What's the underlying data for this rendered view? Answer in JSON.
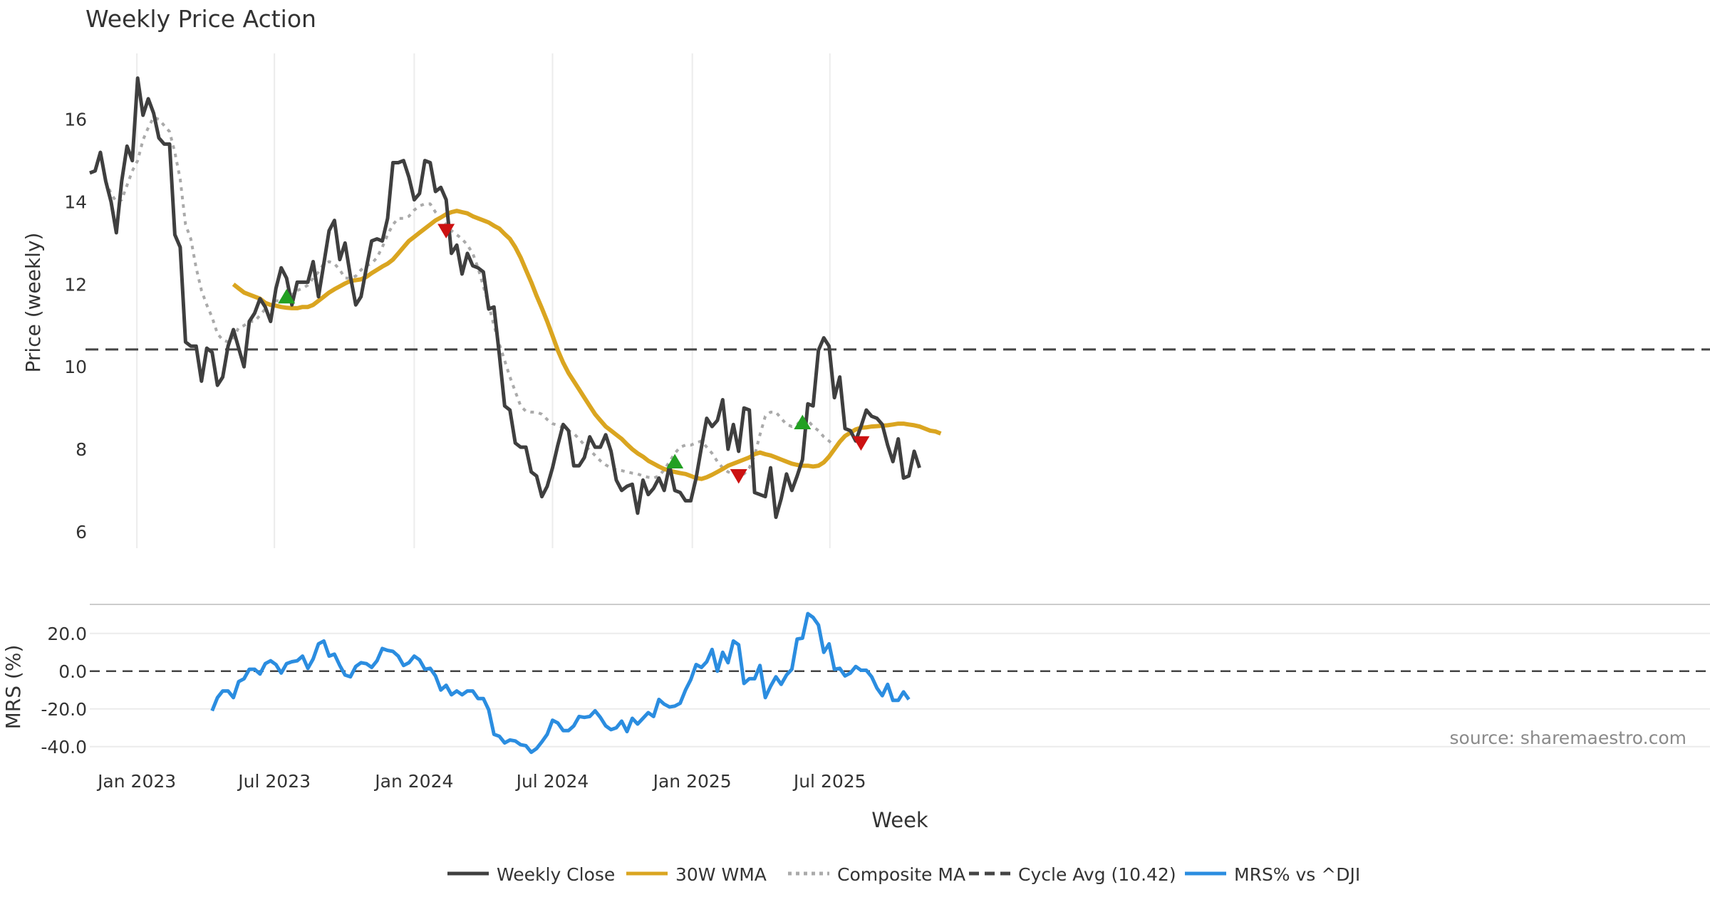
{
  "chart_data": [
    {
      "type": "line",
      "title": "Weekly Price Action",
      "ylabel": "Price (weekly)",
      "ylim": [
        5.6,
        17.6
      ],
      "yticks": [
        6,
        8,
        10,
        12,
        14,
        16
      ],
      "grid": "x-only",
      "x_tick_labels": [
        "Jan 2023",
        "Jul 2023",
        "Jan 2024",
        "Jul 2024",
        "Jan 2025",
        "Jul 2025"
      ],
      "x_start": "2022-10-31",
      "x_step_days": 7,
      "cycle_avg": 10.42,
      "series": [
        {
          "name": "Weekly Close",
          "color": "#3f3f3f",
          "style": "solid",
          "values": [
            14.7,
            14.75,
            15.2,
            14.5,
            14.0,
            13.25,
            14.5,
            15.35,
            15.0,
            17.0,
            16.1,
            16.5,
            16.15,
            15.55,
            15.4,
            15.4,
            13.2,
            12.9,
            10.6,
            10.5,
            10.5,
            9.65,
            10.45,
            10.35,
            9.55,
            9.75,
            10.5,
            10.9,
            10.45,
            10.0,
            11.1,
            11.3,
            11.65,
            11.45,
            11.1,
            11.9,
            12.4,
            12.15,
            11.5,
            12.05,
            12.05,
            12.05,
            12.55,
            11.7,
            12.5,
            13.3,
            13.55,
            12.6,
            13.0,
            12.2,
            11.5,
            11.7,
            12.4,
            13.05,
            13.1,
            13.05,
            13.6,
            14.95,
            14.95,
            15.0,
            14.6,
            14.05,
            14.2,
            15.0,
            14.95,
            14.25,
            14.35,
            14.05,
            12.75,
            12.95,
            12.25,
            12.75,
            12.45,
            12.4,
            12.3,
            11.4,
            11.45,
            10.3,
            9.05,
            8.95,
            8.15,
            8.05,
            8.05,
            7.45,
            7.35,
            6.85,
            7.1,
            7.55,
            8.1,
            8.6,
            8.45,
            7.6,
            7.6,
            7.8,
            8.3,
            8.05,
            8.05,
            8.35,
            7.95,
            7.25,
            7.0,
            7.1,
            7.15,
            6.45,
            7.25,
            6.9,
            7.05,
            7.3,
            7.0,
            7.6,
            7.0,
            6.95,
            6.75,
            6.75,
            7.3,
            8.05,
            8.75,
            8.55,
            8.7,
            9.2,
            8.0,
            8.6,
            7.95,
            9.0,
            8.95,
            6.95,
            6.9,
            6.85,
            7.55,
            6.35,
            6.8,
            7.4,
            7.0,
            7.35,
            7.75,
            9.1,
            9.05,
            10.4,
            10.7,
            10.5,
            9.25,
            9.75,
            8.5,
            8.45,
            8.2,
            8.55,
            8.95,
            8.8,
            8.75,
            8.6,
            8.1,
            7.7,
            8.25,
            7.3,
            7.35,
            7.95,
            7.55
          ]
        },
        {
          "name": "30W WMA",
          "color": "#daa520",
          "style": "solid",
          "start_index": 27,
          "values": [
            12.0,
            11.9,
            11.8,
            11.75,
            11.7,
            11.65,
            11.55,
            11.5,
            11.48,
            11.45,
            11.43,
            11.42,
            11.42,
            11.45,
            11.45,
            11.5,
            11.6,
            11.7,
            11.8,
            11.88,
            11.95,
            12.02,
            12.08,
            12.1,
            12.12,
            12.18,
            12.27,
            12.35,
            12.43,
            12.5,
            12.6,
            12.75,
            12.9,
            13.05,
            13.15,
            13.25,
            13.35,
            13.45,
            13.55,
            13.62,
            13.7,
            13.75,
            13.78,
            13.75,
            13.72,
            13.65,
            13.6,
            13.55,
            13.5,
            13.42,
            13.35,
            13.22,
            13.1,
            12.9,
            12.65,
            12.35,
            12.05,
            11.72,
            11.42,
            11.1,
            10.75,
            10.4,
            10.1,
            9.85,
            9.65,
            9.45,
            9.25,
            9.05,
            8.85,
            8.7,
            8.55,
            8.45,
            8.35,
            8.25,
            8.12,
            8.0,
            7.9,
            7.82,
            7.72,
            7.65,
            7.58,
            7.52,
            7.48,
            7.45,
            7.42,
            7.4,
            7.35,
            7.3,
            7.28,
            7.32,
            7.38,
            7.45,
            7.52,
            7.6,
            7.65,
            7.7,
            7.75,
            7.8,
            7.88,
            7.92,
            7.88,
            7.85,
            7.8,
            7.75,
            7.7,
            7.65,
            7.62,
            7.6,
            7.6,
            7.58,
            7.6,
            7.68,
            7.82,
            8.0,
            8.18,
            8.32,
            8.4,
            8.48,
            8.52,
            8.53,
            8.55,
            8.56,
            8.57,
            8.58,
            8.6,
            8.62,
            8.62,
            8.6,
            8.58,
            8.55,
            8.5,
            8.45,
            8.43,
            8.38
          ]
        },
        {
          "name": "Composite MA",
          "color": "#aaaaaa",
          "style": "dotted",
          "start_index": 3,
          "values": [
            14.5,
            14.2,
            14.0,
            14.05,
            14.4,
            14.75,
            15.0,
            15.5,
            15.8,
            16.05,
            16.0,
            15.85,
            15.7,
            15.2,
            14.55,
            13.45,
            13.1,
            12.4,
            11.85,
            11.5,
            11.2,
            10.8,
            10.65,
            10.6,
            10.7,
            10.95,
            11.0,
            11.1,
            11.1,
            11.25,
            11.4,
            11.55,
            11.6,
            11.6,
            11.65,
            11.75,
            11.85,
            11.9,
            11.98,
            12.15,
            12.3,
            12.5,
            12.55,
            12.5,
            12.35,
            12.15,
            12.15,
            12.2,
            12.35,
            12.45,
            12.5,
            12.65,
            12.9,
            13.2,
            13.45,
            13.6,
            13.6,
            13.65,
            13.8,
            13.9,
            13.95,
            13.95,
            13.75,
            13.6,
            13.45,
            13.3,
            13.2,
            13.1,
            12.95,
            12.75,
            12.4,
            11.95,
            11.5,
            11.0,
            10.55,
            10.15,
            9.75,
            9.4,
            9.05,
            8.92,
            8.9,
            8.9,
            8.85,
            8.72,
            8.62,
            8.58,
            8.52,
            8.45,
            8.38,
            8.25,
            8.1,
            7.98,
            7.85,
            7.72,
            7.62,
            7.55,
            7.5,
            7.48,
            7.45,
            7.42,
            7.4,
            7.35,
            7.32,
            7.3,
            7.35,
            7.5,
            7.7,
            7.9,
            8.05,
            8.1,
            8.1,
            8.15,
            8.2,
            8.05,
            7.9,
            7.7,
            7.55,
            7.45,
            7.4,
            7.38,
            7.4,
            7.55,
            7.85,
            8.35,
            8.8,
            8.9,
            8.9,
            8.75,
            8.6,
            8.55,
            8.6,
            8.75,
            8.7,
            8.55,
            8.45,
            8.3,
            8.2,
            8.08
          ]
        }
      ],
      "reference_line": {
        "name": "Cycle Avg (10.42)",
        "value": 10.42,
        "color": "#444444",
        "style": "dashed"
      },
      "markers": [
        {
          "type": "buy",
          "index": 37,
          "value": 11.7,
          "color": "#22a022"
        },
        {
          "type": "sell",
          "index": 67,
          "value": 13.3,
          "color": "#cc1111"
        },
        {
          "type": "buy",
          "index": 110,
          "value": 7.7,
          "color": "#22a022"
        },
        {
          "type": "sell",
          "index": 122,
          "value": 7.35,
          "color": "#cc1111"
        },
        {
          "type": "buy",
          "index": 134,
          "value": 8.65,
          "color": "#22a022"
        },
        {
          "type": "sell",
          "index": 145,
          "value": 8.15,
          "color": "#cc1111"
        }
      ]
    },
    {
      "type": "line",
      "ylabel": "MRS (%)",
      "xlabel": "Week",
      "ylim": [
        -45,
        32
      ],
      "yticks": [
        "-40.0",
        "-20.0",
        "0.0",
        "20.0"
      ],
      "ytick_values": [
        -40,
        -20,
        0,
        20
      ],
      "zero_line": 0,
      "source_note": "source: sharemaestro.com",
      "series": [
        {
          "name": "MRS% vs ^DJI",
          "color": "#2b8de0",
          "start_index": 23,
          "values": [
            -21,
            -14,
            -10.5,
            -10.5,
            -14,
            -5.5,
            -4,
            1,
            1,
            -1.5,
            4,
            5.5,
            3.5,
            -1,
            4,
            5,
            5.5,
            8,
            1.5,
            6.5,
            14.5,
            16,
            8,
            9,
            3,
            -2,
            -3,
            2.5,
            4.5,
            4,
            2,
            5.5,
            12,
            11,
            10.5,
            8,
            3,
            4.5,
            8,
            6,
            1,
            1.5,
            -2.5,
            -10,
            -7.5,
            -12.5,
            -10.5,
            -12.5,
            -10.5,
            -10.5,
            -14.5,
            -14.5,
            -20.5,
            -33.5,
            -34.5,
            -38,
            -36.5,
            -37,
            -39,
            -39.5,
            -43,
            -41,
            -37.5,
            -33.5,
            -26,
            -27.5,
            -31.5,
            -31.5,
            -29,
            -24,
            -24.5,
            -24,
            -21,
            -24.5,
            -29,
            -31,
            -30,
            -26.5,
            -32,
            -25,
            -28,
            -25,
            -22,
            -24,
            -15,
            -17.5,
            -19,
            -18.5,
            -17,
            -10,
            -4.5,
            3.5,
            2,
            5,
            11.5,
            0,
            10,
            4.5,
            16,
            14,
            -6.5,
            -4,
            -4,
            3,
            -14,
            -8,
            -3,
            -7,
            -2,
            1,
            17,
            17.5,
            30.5,
            28.5,
            24.5,
            10,
            14.5,
            1,
            1.5,
            -2.5,
            -1,
            2.5,
            0.5,
            0.5,
            -3,
            -9,
            -13,
            -7,
            -15.5,
            -15.5,
            -11,
            -15
          ]
        }
      ]
    }
  ],
  "legend": [
    {
      "label": "Weekly Close",
      "color": "#3f3f3f",
      "style": "solid"
    },
    {
      "label": "30W WMA",
      "color": "#daa520",
      "style": "solid"
    },
    {
      "label": "Composite MA",
      "color": "#aaaaaa",
      "style": "dotted"
    },
    {
      "label": "Cycle Avg (10.42)",
      "color": "#444444",
      "style": "dashed"
    },
    {
      "label": "MRS% vs ^DJI",
      "color": "#2b8de0",
      "style": "solid"
    }
  ]
}
